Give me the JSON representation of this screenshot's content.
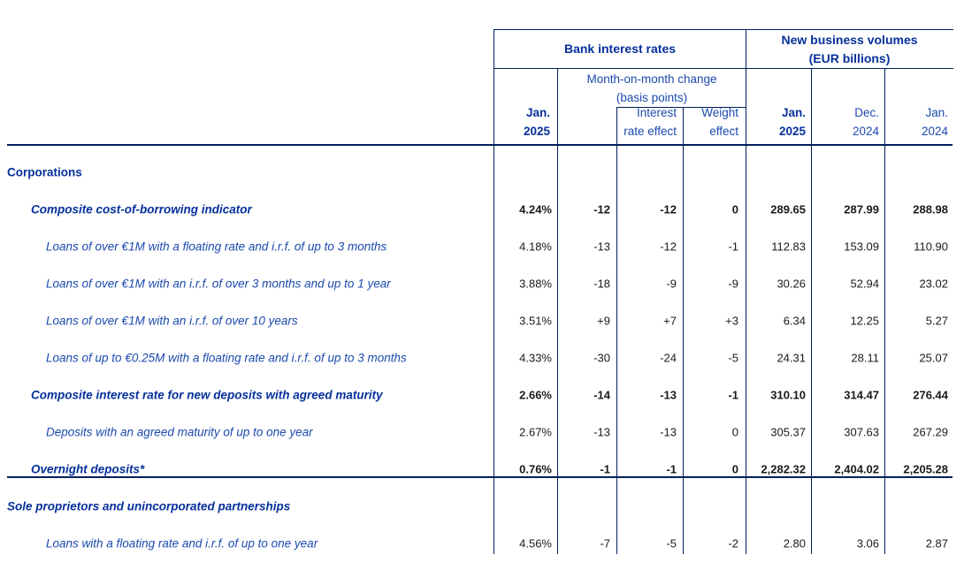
{
  "colors": {
    "blue-bold": "#05309B",
    "blue-reg": "#1C4AAE",
    "line": "#001F5B",
    "data-text": "#1a1a1a"
  },
  "header": {
    "bank_interest_rates": "Bank interest rates",
    "new_business_volumes": "New business volumes\n(EUR billions)",
    "mom_change": "Month-on-month change\n(basis points)",
    "col_jan_2025_rates": "Jan.\n2025",
    "col_interest_rate_effect": "Interest\nrate effect",
    "col_weight_effect": "Weight\neffect",
    "col_jan_2025_volumes": "Jan.\n2025",
    "col_dec_2024": "Dec.\n2024",
    "col_jan_2024": "Jan.\n2024"
  },
  "rows": [
    {
      "label": "Corporations",
      "indent": 0,
      "style": "section",
      "values": [
        "",
        "",
        "",
        "",
        "",
        "",
        ""
      ]
    },
    {
      "label": "Composite cost-of-borrowing indicator",
      "indent": 1,
      "style": "bold",
      "values": [
        "4.24%",
        "-12",
        "-12",
        "0",
        "289.65",
        "287.99",
        "288.98"
      ]
    },
    {
      "label": "Loans of over €1M with a floating rate and i.r.f. of up to 3 months",
      "indent": 2,
      "style": "normal",
      "values": [
        "4.18%",
        "-13",
        "-12",
        "-1",
        "112.83",
        "153.09",
        "110.90"
      ]
    },
    {
      "label": "Loans of over €1M with an i.r.f. of over 3 months and up to 1 year",
      "indent": 2,
      "style": "normal",
      "values": [
        "3.88%",
        "-18",
        "-9",
        "-9",
        "30.26",
        "52.94",
        "23.02"
      ]
    },
    {
      "label": "Loans of over €1M with an i.r.f. of over 10 years",
      "indent": 2,
      "style": "normal",
      "values": [
        "3.51%",
        "+9",
        "+7",
        "+3",
        "6.34",
        "12.25",
        "5.27"
      ]
    },
    {
      "label": "Loans of up to €0.25M with a floating rate and i.r.f. of up to 3 months",
      "indent": 2,
      "style": "normal",
      "values": [
        "4.33%",
        "-30",
        "-24",
        "-5",
        "24.31",
        "28.11",
        "25.07"
      ]
    },
    {
      "label": "Composite interest rate for new deposits with agreed maturity",
      "indent": 1,
      "style": "bold",
      "values": [
        "2.66%",
        "-14",
        "-13",
        "-1",
        "310.10",
        "314.47",
        "276.44"
      ]
    },
    {
      "label": "Deposits with an agreed maturity of up to one year",
      "indent": 2,
      "style": "normal",
      "values": [
        "2.67%",
        "-13",
        "-13",
        "0",
        "305.37",
        "307.63",
        "267.29"
      ]
    },
    {
      "label": "Overnight deposits*",
      "indent": 1,
      "style": "bold",
      "values": [
        "0.76%",
        "-1",
        "-1",
        "0",
        "2,282.32",
        "2,404.02",
        "2,205.28"
      ]
    },
    {
      "label": "Sole proprietors and unincorporated partnerships",
      "indent": 0,
      "style": "section-italic",
      "values": [
        "",
        "",
        "",
        "",
        "",
        "",
        ""
      ]
    },
    {
      "label": "Loans with a floating rate and i.r.f. of up to one year",
      "indent": 2,
      "style": "normal",
      "values": [
        "4.56%",
        "-7",
        "-5",
        "-2",
        "2.80",
        "3.06",
        "2.87"
      ]
    }
  ]
}
